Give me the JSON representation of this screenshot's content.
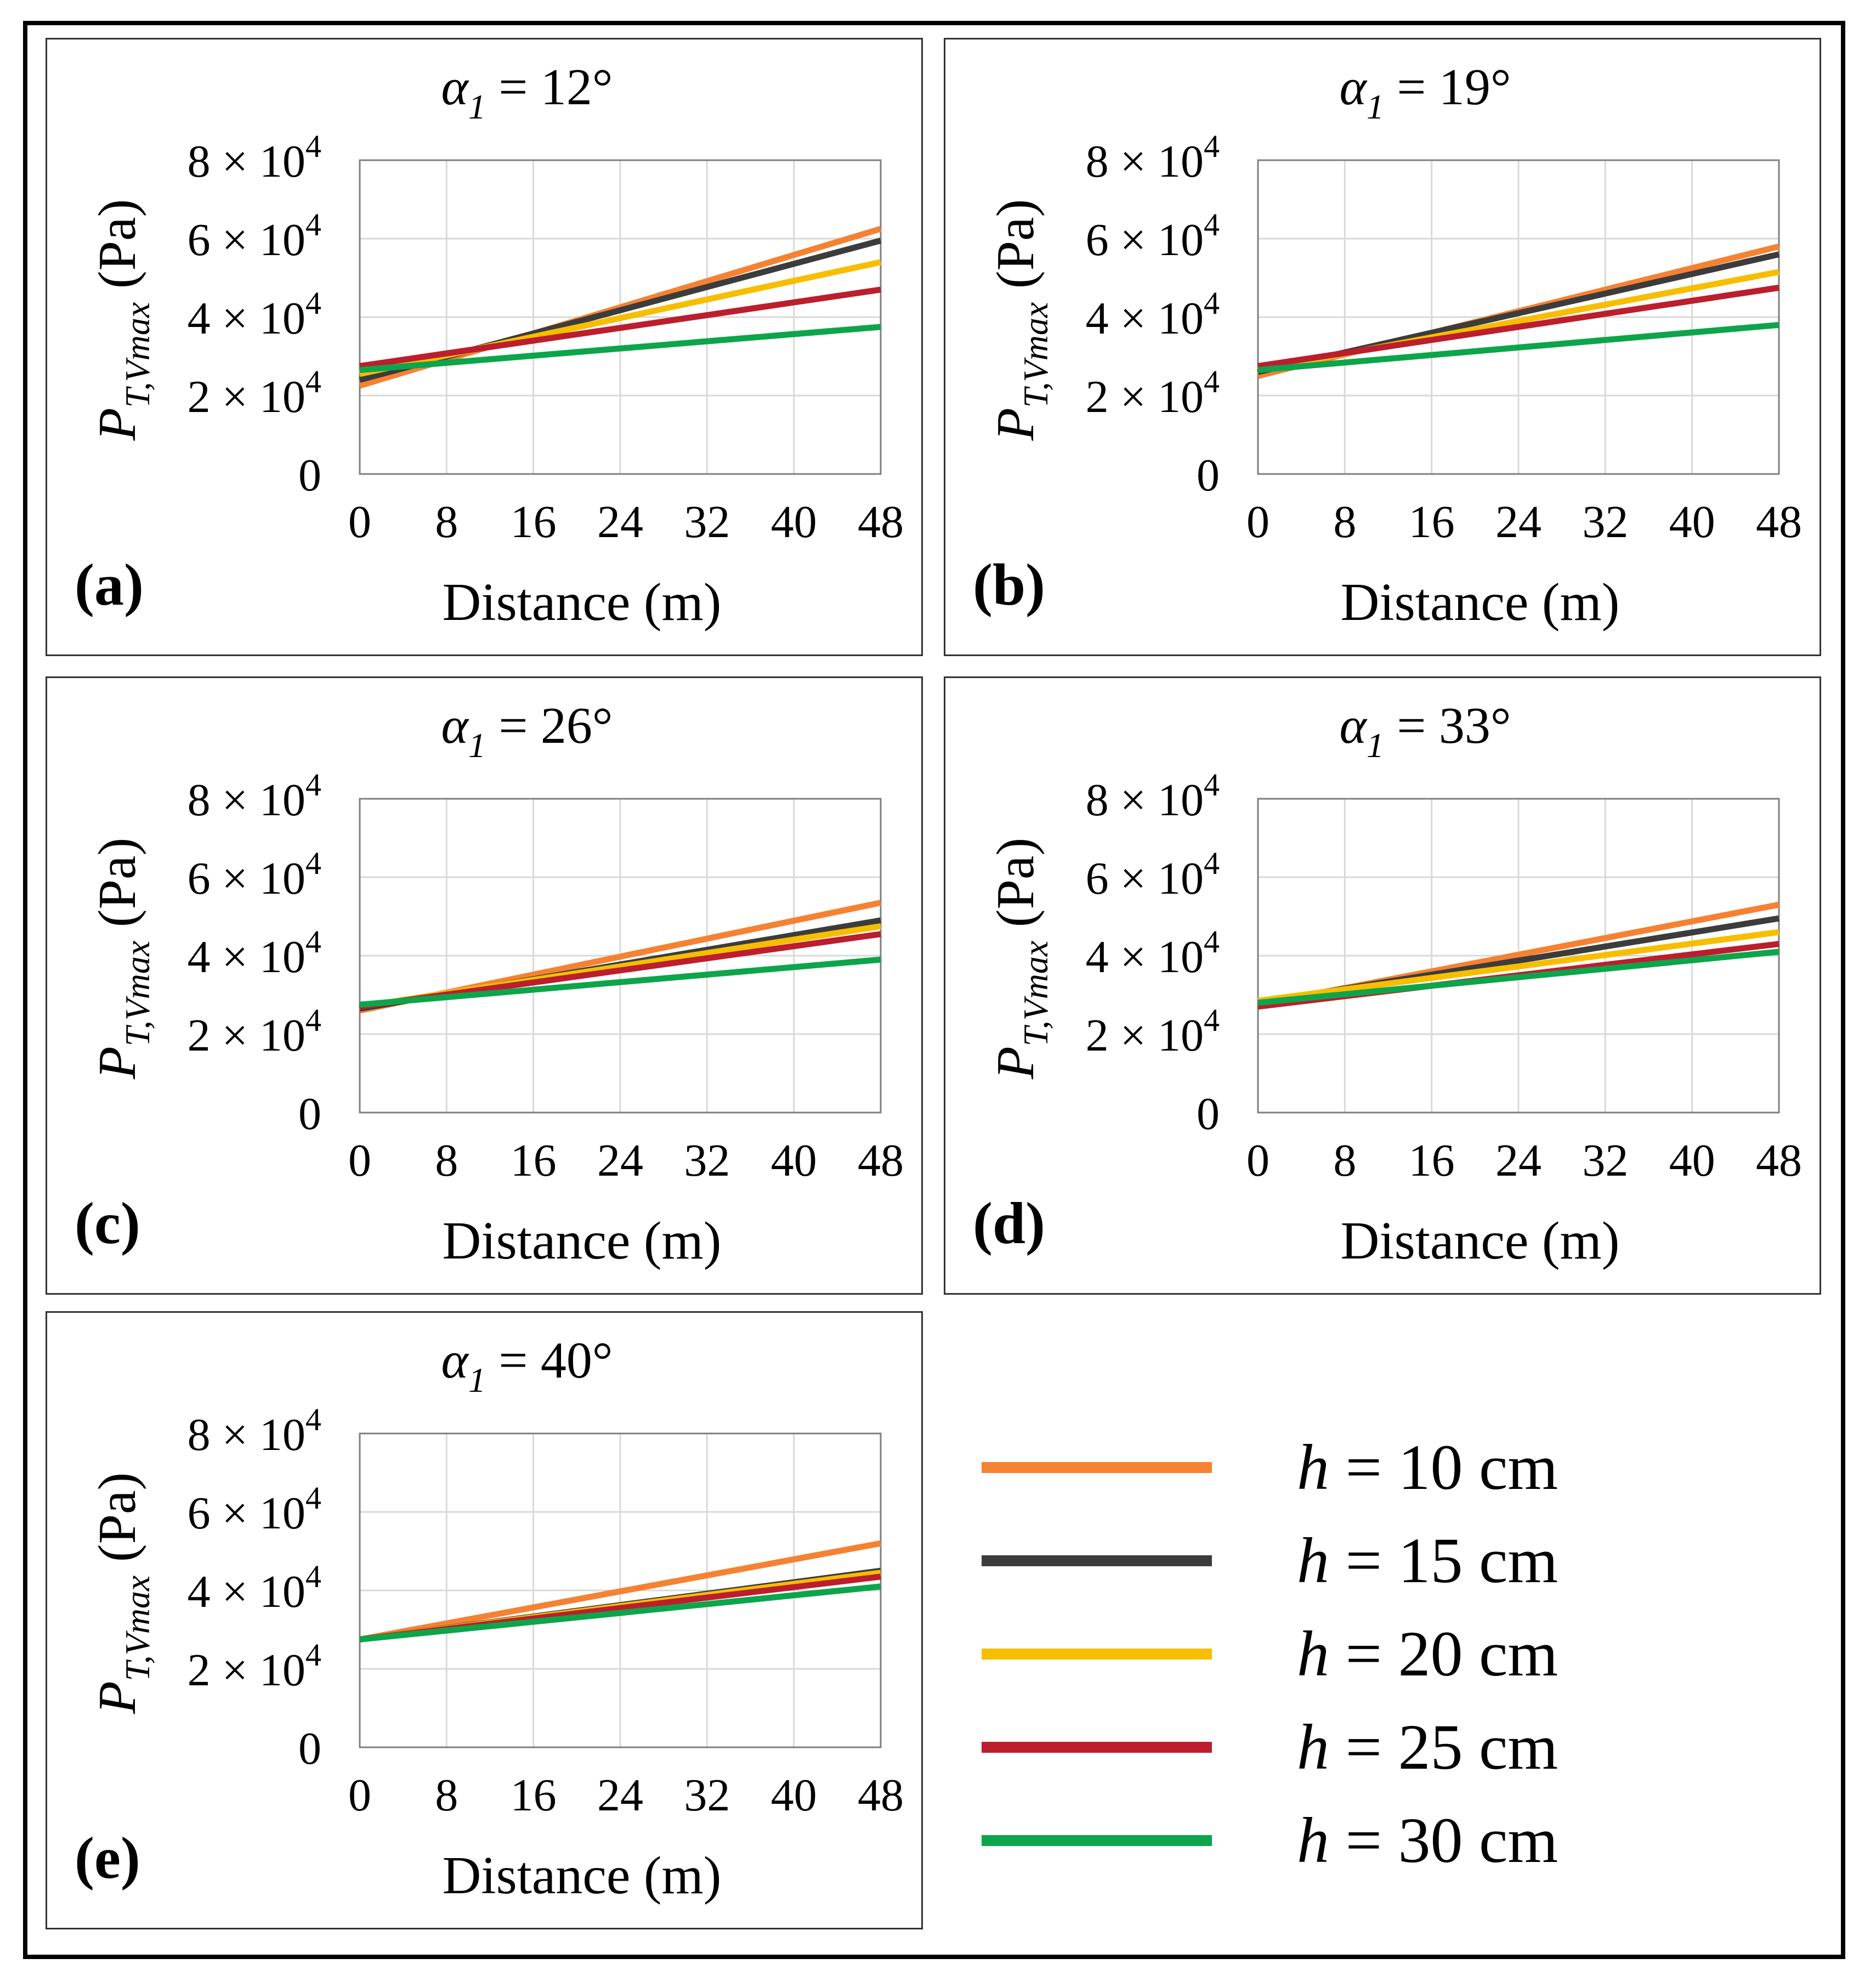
{
  "figure": {
    "legend": [
      {
        "var": "h",
        "text": "= 10 cm",
        "color": "#F58232"
      },
      {
        "var": "h",
        "text": "= 15 cm",
        "color": "#3C3C3C"
      },
      {
        "var": "h",
        "text": "= 20 cm",
        "color": "#F7BE00"
      },
      {
        "var": "h",
        "text": "= 25 cm",
        "color": "#BC1E2D"
      },
      {
        "var": "h",
        "text": "= 30 cm",
        "color": "#0DA54B"
      }
    ]
  },
  "chart_data": [
    {
      "type": "line",
      "panel_label": "(a)",
      "title_symbol": "α",
      "title_subscript": "1",
      "title_value": "= 12°",
      "xlabel": "Distance (m)",
      "ylabel_symbol": "P",
      "ylabel_subscript": "T,Vmax",
      "ylabel_unit": "(Pa)",
      "x_ticks": [
        "0",
        "8",
        "16",
        "24",
        "32",
        "40",
        "48"
      ],
      "y_ticks": [
        {
          "value": 0,
          "label": "0"
        },
        {
          "value": 20000,
          "label": "2 × 10",
          "exp": "4"
        },
        {
          "value": 40000,
          "label": "4 × 10",
          "exp": "4"
        },
        {
          "value": 60000,
          "label": "6 × 10",
          "exp": "4"
        },
        {
          "value": 80000,
          "label": "8 × 10",
          "exp": "4"
        }
      ],
      "xlim": [
        0,
        48
      ],
      "ylim": [
        0,
        80000
      ],
      "grid": true,
      "series": [
        {
          "name": "h = 10 cm",
          "x": [
            0,
            48
          ],
          "values": [
            22500,
            62500
          ]
        },
        {
          "name": "h = 15 cm",
          "x": [
            0,
            48
          ],
          "values": [
            24000,
            59500
          ]
        },
        {
          "name": "h = 20 cm",
          "x": [
            0,
            48
          ],
          "values": [
            25500,
            54000
          ]
        },
        {
          "name": "h = 25 cm",
          "x": [
            0,
            48
          ],
          "values": [
            27500,
            47000
          ]
        },
        {
          "name": "h = 30 cm",
          "x": [
            0,
            48
          ],
          "values": [
            26500,
            37500
          ]
        }
      ]
    },
    {
      "type": "line",
      "panel_label": "(b)",
      "title_symbol": "α",
      "title_subscript": "1",
      "title_value": "= 19°",
      "xlabel": "Distance (m)",
      "ylabel_symbol": "P",
      "ylabel_subscript": "T,Vmax",
      "ylabel_unit": "(Pa)",
      "x_ticks": [
        "0",
        "8",
        "16",
        "24",
        "32",
        "40",
        "48"
      ],
      "y_ticks": [
        {
          "value": 0,
          "label": "0"
        },
        {
          "value": 20000,
          "label": "2 × 10",
          "exp": "4"
        },
        {
          "value": 40000,
          "label": "4 × 10",
          "exp": "4"
        },
        {
          "value": 60000,
          "label": "6 × 10",
          "exp": "4"
        },
        {
          "value": 80000,
          "label": "8 × 10",
          "exp": "4"
        }
      ],
      "xlim": [
        0,
        48
      ],
      "ylim": [
        0,
        80000
      ],
      "grid": true,
      "series": [
        {
          "name": "h = 10 cm",
          "x": [
            0,
            48
          ],
          "values": [
            25000,
            58000
          ]
        },
        {
          "name": "h = 15 cm",
          "x": [
            0,
            48
          ],
          "values": [
            26000,
            56000
          ]
        },
        {
          "name": "h = 20 cm",
          "x": [
            0,
            48
          ],
          "values": [
            26500,
            51500
          ]
        },
        {
          "name": "h = 25 cm",
          "x": [
            0,
            48
          ],
          "values": [
            27500,
            47500
          ]
        },
        {
          "name": "h = 30 cm",
          "x": [
            0,
            48
          ],
          "values": [
            26500,
            38000
          ]
        }
      ]
    },
    {
      "type": "line",
      "panel_label": "(c)",
      "title_symbol": "α",
      "title_subscript": "1",
      "title_value": "= 26°",
      "xlabel": "Distance (m)",
      "ylabel_symbol": "P",
      "ylabel_subscript": "T,Vmax",
      "ylabel_unit": "(Pa)",
      "x_ticks": [
        "0",
        "8",
        "16",
        "24",
        "32",
        "40",
        "48"
      ],
      "y_ticks": [
        {
          "value": 0,
          "label": "0"
        },
        {
          "value": 20000,
          "label": "2 × 10",
          "exp": "4"
        },
        {
          "value": 40000,
          "label": "4 × 10",
          "exp": "4"
        },
        {
          "value": 60000,
          "label": "6 × 10",
          "exp": "4"
        },
        {
          "value": 80000,
          "label": "8 × 10",
          "exp": "4"
        }
      ],
      "xlim": [
        0,
        48
      ],
      "ylim": [
        0,
        80000
      ],
      "grid": true,
      "series": [
        {
          "name": "h = 10 cm",
          "x": [
            0,
            48
          ],
          "values": [
            26000,
            53500
          ]
        },
        {
          "name": "h = 15 cm",
          "x": [
            0,
            48
          ],
          "values": [
            26500,
            49000
          ]
        },
        {
          "name": "h = 20 cm",
          "x": [
            0,
            48
          ],
          "values": [
            27000,
            47500
          ]
        },
        {
          "name": "h = 25 cm",
          "x": [
            0,
            48
          ],
          "values": [
            27000,
            45500
          ]
        },
        {
          "name": "h = 30 cm",
          "x": [
            0,
            48
          ],
          "values": [
            27500,
            39000
          ]
        }
      ]
    },
    {
      "type": "line",
      "panel_label": "(d)",
      "title_symbol": "α",
      "title_subscript": "1",
      "title_value": "= 33°",
      "xlabel": "Distance (m)",
      "ylabel_symbol": "P",
      "ylabel_subscript": "T,Vmax",
      "ylabel_unit": "(Pa)",
      "x_ticks": [
        "0",
        "8",
        "16",
        "24",
        "32",
        "40",
        "48"
      ],
      "y_ticks": [
        {
          "value": 0,
          "label": "0"
        },
        {
          "value": 20000,
          "label": "2 × 10",
          "exp": "4"
        },
        {
          "value": 40000,
          "label": "4 × 10",
          "exp": "4"
        },
        {
          "value": 60000,
          "label": "6 × 10",
          "exp": "4"
        },
        {
          "value": 80000,
          "label": "8 × 10",
          "exp": "4"
        }
      ],
      "xlim": [
        0,
        48
      ],
      "ylim": [
        0,
        80000
      ],
      "grid": true,
      "series": [
        {
          "name": "h = 10 cm",
          "x": [
            0,
            48
          ],
          "values": [
            27500,
            53000
          ]
        },
        {
          "name": "h = 15 cm",
          "x": [
            0,
            48
          ],
          "values": [
            28000,
            49500
          ]
        },
        {
          "name": "h = 20 cm",
          "x": [
            0,
            48
          ],
          "values": [
            28500,
            46000
          ]
        },
        {
          "name": "h = 25 cm",
          "x": [
            0,
            48
          ],
          "values": [
            27000,
            43000
          ]
        },
        {
          "name": "h = 30 cm",
          "x": [
            0,
            48
          ],
          "values": [
            28000,
            41000
          ]
        }
      ]
    },
    {
      "type": "line",
      "panel_label": "(e)",
      "title_symbol": "α",
      "title_subscript": "1",
      "title_value": "= 40°",
      "xlabel": "Distance (m)",
      "ylabel_symbol": "P",
      "ylabel_subscript": "T,Vmax",
      "ylabel_unit": "(Pa)",
      "x_ticks": [
        "0",
        "8",
        "16",
        "24",
        "32",
        "40",
        "48"
      ],
      "y_ticks": [
        {
          "value": 0,
          "label": "0"
        },
        {
          "value": 20000,
          "label": "2 × 10",
          "exp": "4"
        },
        {
          "value": 40000,
          "label": "4 × 10",
          "exp": "4"
        },
        {
          "value": 60000,
          "label": "6 × 10",
          "exp": "4"
        },
        {
          "value": 80000,
          "label": "8 × 10",
          "exp": "4"
        }
      ],
      "xlim": [
        0,
        48
      ],
      "ylim": [
        0,
        80000
      ],
      "grid": true,
      "series": [
        {
          "name": "h = 10 cm",
          "x": [
            0,
            48
          ],
          "values": [
            27500,
            52000
          ]
        },
        {
          "name": "h = 15 cm",
          "x": [
            0,
            48
          ],
          "values": [
            27500,
            45000
          ]
        },
        {
          "name": "h = 20 cm",
          "x": [
            0,
            48
          ],
          "values": [
            27500,
            44500
          ]
        },
        {
          "name": "h = 25 cm",
          "x": [
            0,
            48
          ],
          "values": [
            27500,
            43500
          ]
        },
        {
          "name": "h = 30 cm",
          "x": [
            0,
            48
          ],
          "values": [
            27500,
            41000
          ]
        }
      ]
    }
  ]
}
